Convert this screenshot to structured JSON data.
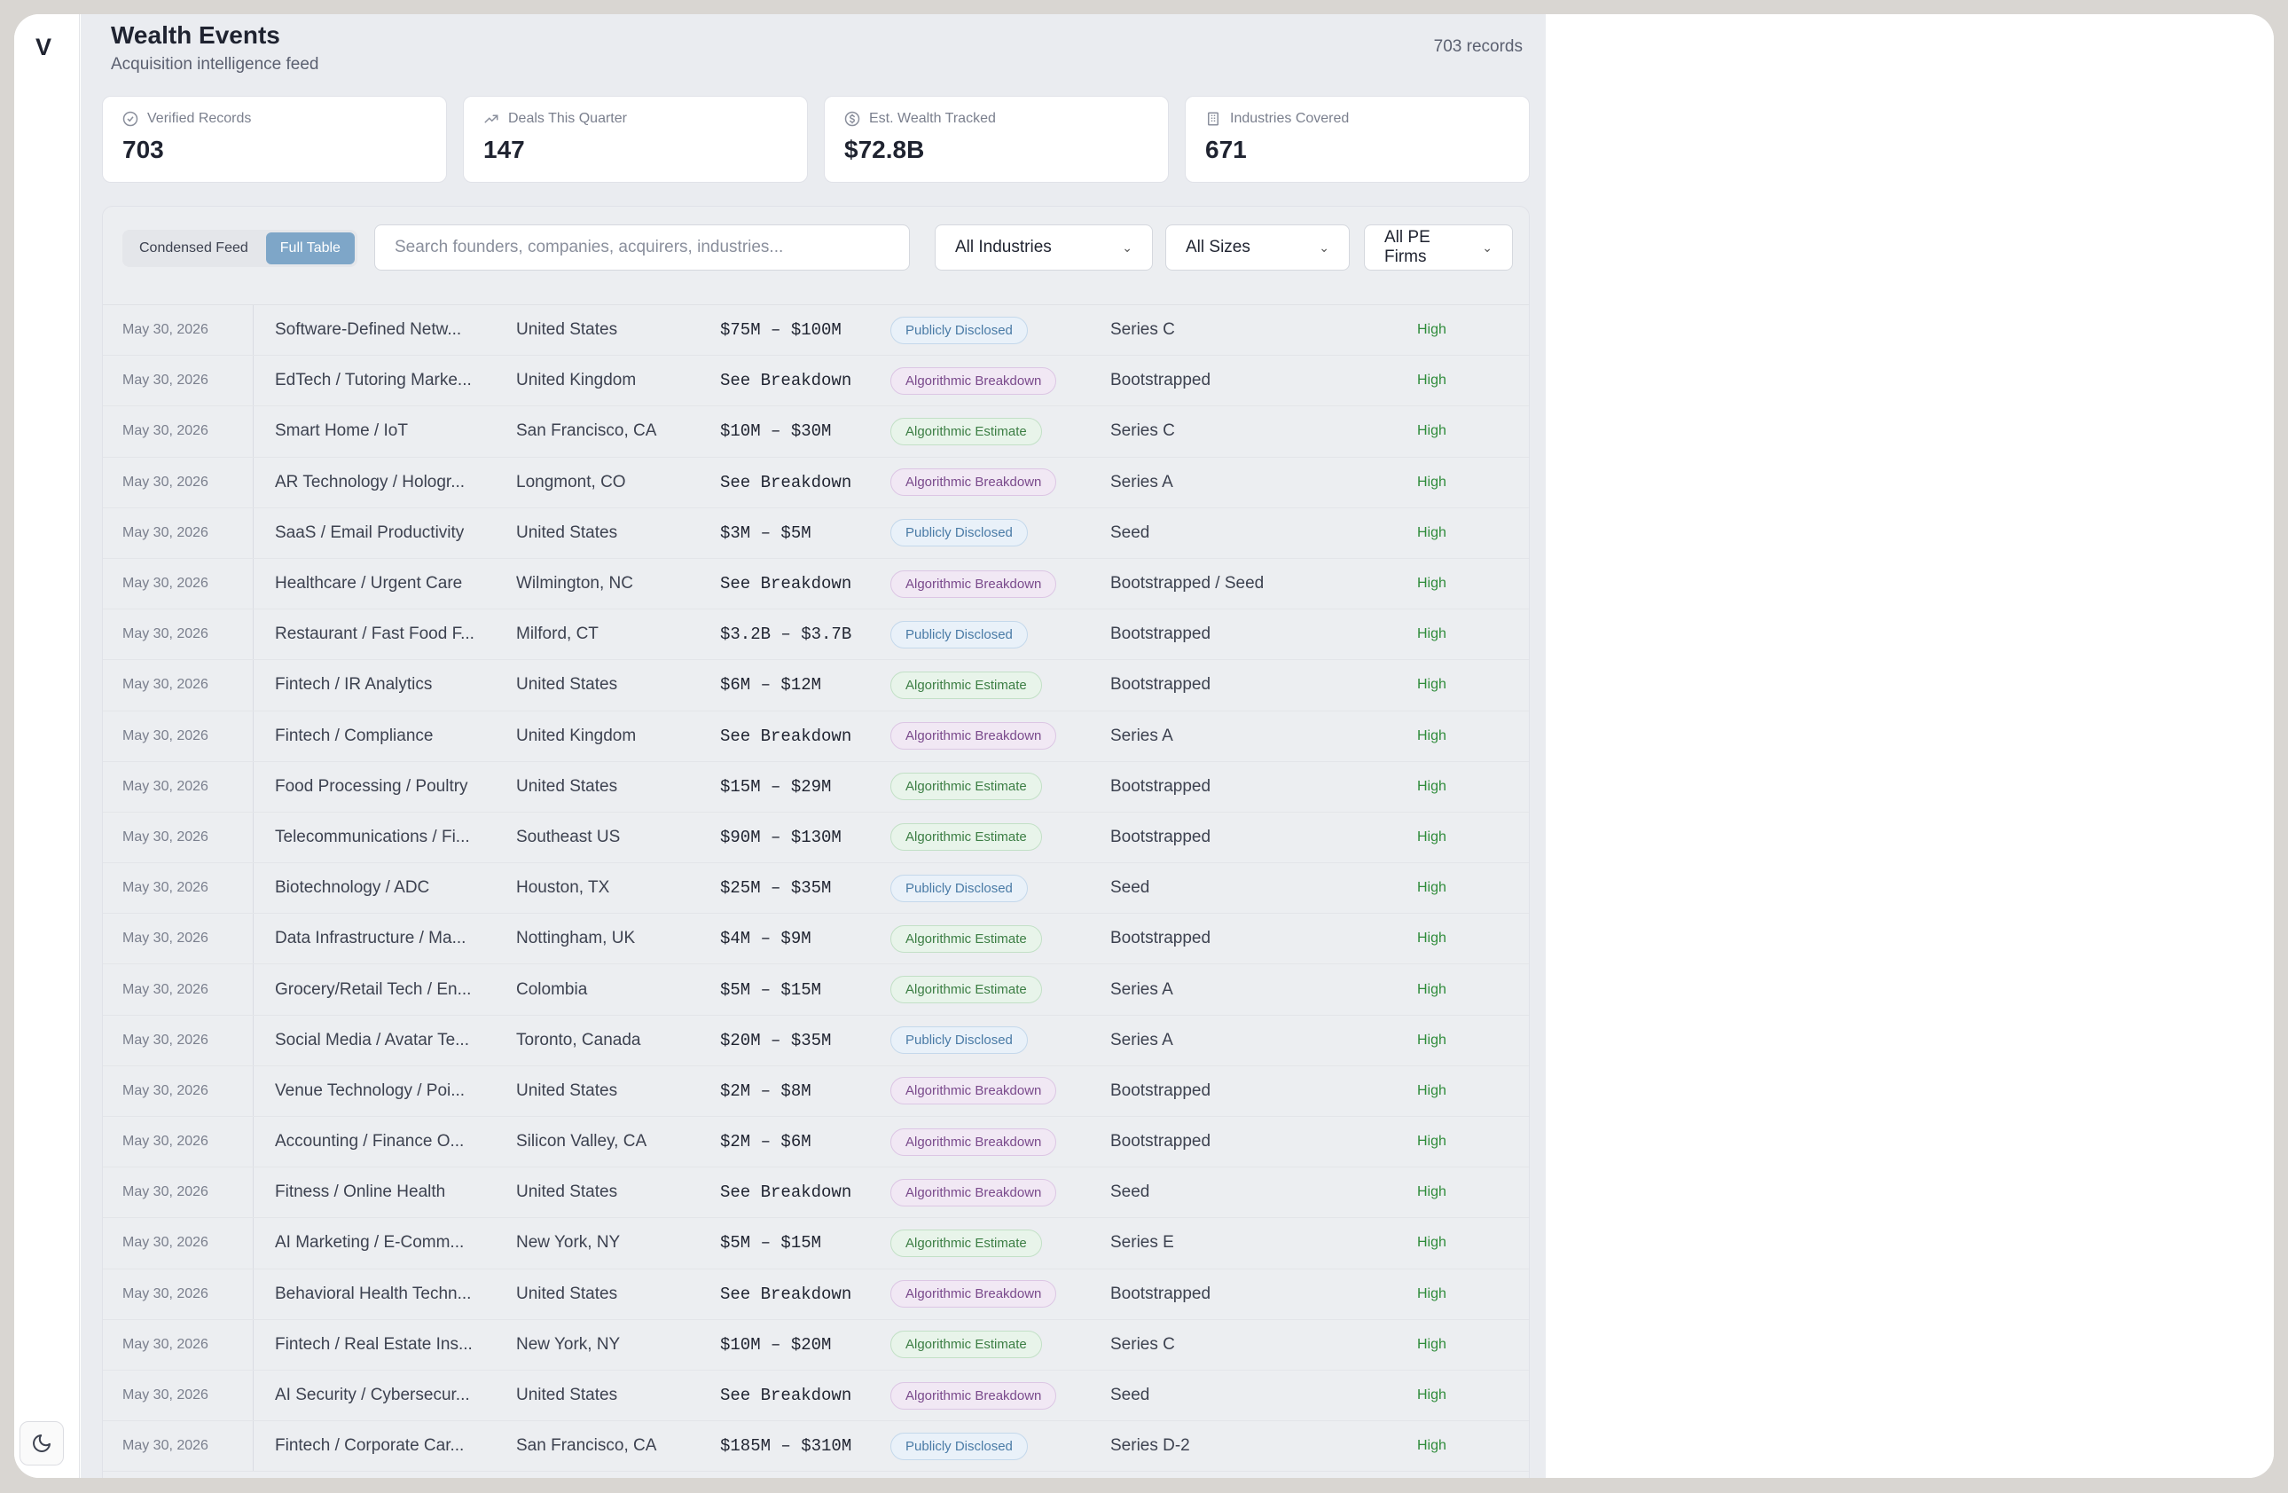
{
  "sidebar": {
    "logo": "V",
    "theme_icon": "moon-icon"
  },
  "header": {
    "title": "Wealth Events",
    "subtitle": "Acquisition intelligence feed",
    "records_count": "703 records"
  },
  "stats": [
    {
      "icon": "check-circle-icon",
      "label": "Verified Records",
      "value": "703"
    },
    {
      "icon": "trending-up-icon",
      "label": "Deals This Quarter",
      "value": "147"
    },
    {
      "icon": "dollar-circle-icon",
      "label": "Est. Wealth Tracked",
      "value": "$72.8B"
    },
    {
      "icon": "building-icon",
      "label": "Industries Covered",
      "value": "671"
    }
  ],
  "toolbar": {
    "view_condensed": "Condensed Feed",
    "view_full": "Full Table",
    "search_placeholder": "Search founders, companies, acquirers, industries...",
    "filter_industries": "All Industries",
    "filter_sizes": "All Sizes",
    "filter_pe": "All PE Firms"
  },
  "colors": {
    "publicly_disclosed": "#4a7ba6",
    "algorithmic_breakdown": "#7a4a8c",
    "algorithmic_estimate": "#3c7e44",
    "confidence_high": "#2e8b3a",
    "active_toggle": "#7ea6c8"
  },
  "rows": [
    {
      "date": "May 30, 2026",
      "industry": "Software-Defined Netw...",
      "location": "United States",
      "value": "$75M – $100M",
      "source": "Publicly Disclosed",
      "source_type": "pub",
      "stage": "Series C",
      "confidence": "High"
    },
    {
      "date": "May 30, 2026",
      "industry": "EdTech / Tutoring Marke...",
      "location": "United Kingdom",
      "value": "See Breakdown",
      "source": "Algorithmic Breakdown",
      "source_type": "brk",
      "stage": "Bootstrapped",
      "confidence": "High"
    },
    {
      "date": "May 30, 2026",
      "industry": "Smart Home / IoT",
      "location": "San Francisco, CA",
      "value": "$10M – $30M",
      "source": "Algorithmic Estimate",
      "source_type": "est",
      "stage": "Series C",
      "confidence": "High"
    },
    {
      "date": "May 30, 2026",
      "industry": "AR Technology / Hologr...",
      "location": "Longmont, CO",
      "value": "See Breakdown",
      "source": "Algorithmic Breakdown",
      "source_type": "brk",
      "stage": "Series A",
      "confidence": "High"
    },
    {
      "date": "May 30, 2026",
      "industry": "SaaS / Email Productivity",
      "location": "United States",
      "value": "$3M – $5M",
      "source": "Publicly Disclosed",
      "source_type": "pub",
      "stage": "Seed",
      "confidence": "High"
    },
    {
      "date": "May 30, 2026",
      "industry": "Healthcare / Urgent Care",
      "location": "Wilmington, NC",
      "value": "See Breakdown",
      "source": "Algorithmic Breakdown",
      "source_type": "brk",
      "stage": "Bootstrapped / Seed",
      "confidence": "High"
    },
    {
      "date": "May 30, 2026",
      "industry": "Restaurant / Fast Food F...",
      "location": "Milford, CT",
      "value": "$3.2B – $3.7B",
      "source": "Publicly Disclosed",
      "source_type": "pub",
      "stage": "Bootstrapped",
      "confidence": "High"
    },
    {
      "date": "May 30, 2026",
      "industry": "Fintech / IR Analytics",
      "location": "United States",
      "value": "$6M – $12M",
      "source": "Algorithmic Estimate",
      "source_type": "est",
      "stage": "Bootstrapped",
      "confidence": "High"
    },
    {
      "date": "May 30, 2026",
      "industry": "Fintech / Compliance",
      "location": "United Kingdom",
      "value": "See Breakdown",
      "source": "Algorithmic Breakdown",
      "source_type": "brk",
      "stage": "Series A",
      "confidence": "High"
    },
    {
      "date": "May 30, 2026",
      "industry": "Food Processing / Poultry",
      "location": "United States",
      "value": "$15M – $29M",
      "source": "Algorithmic Estimate",
      "source_type": "est",
      "stage": "Bootstrapped",
      "confidence": "High"
    },
    {
      "date": "May 30, 2026",
      "industry": "Telecommunications / Fi...",
      "location": "Southeast US",
      "value": "$90M – $130M",
      "source": "Algorithmic Estimate",
      "source_type": "est",
      "stage": "Bootstrapped",
      "confidence": "High"
    },
    {
      "date": "May 30, 2026",
      "industry": "Biotechnology / ADC",
      "location": "Houston, TX",
      "value": "$25M – $35M",
      "source": "Publicly Disclosed",
      "source_type": "pub",
      "stage": "Seed",
      "confidence": "High"
    },
    {
      "date": "May 30, 2026",
      "industry": "Data Infrastructure / Ma...",
      "location": "Nottingham, UK",
      "value": "$4M – $9M",
      "source": "Algorithmic Estimate",
      "source_type": "est",
      "stage": "Bootstrapped",
      "confidence": "High"
    },
    {
      "date": "May 30, 2026",
      "industry": "Grocery/Retail Tech / En...",
      "location": "Colombia",
      "value": "$5M – $15M",
      "source": "Algorithmic Estimate",
      "source_type": "est",
      "stage": "Series A",
      "confidence": "High"
    },
    {
      "date": "May 30, 2026",
      "industry": "Social Media / Avatar Te...",
      "location": "Toronto, Canada",
      "value": "$20M – $35M",
      "source": "Publicly Disclosed",
      "source_type": "pub",
      "stage": "Series A",
      "confidence": "High"
    },
    {
      "date": "May 30, 2026",
      "industry": "Venue Technology / Poi...",
      "location": "United States",
      "value": "$2M – $8M",
      "source": "Algorithmic Breakdown",
      "source_type": "brk",
      "stage": "Bootstrapped",
      "confidence": "High"
    },
    {
      "date": "May 30, 2026",
      "industry": "Accounting / Finance O...",
      "location": "Silicon Valley, CA",
      "value": "$2M – $6M",
      "source": "Algorithmic Breakdown",
      "source_type": "brk",
      "stage": "Bootstrapped",
      "confidence": "High"
    },
    {
      "date": "May 30, 2026",
      "industry": "Fitness / Online Health",
      "location": "United States",
      "value": "See Breakdown",
      "source": "Algorithmic Breakdown",
      "source_type": "brk",
      "stage": "Seed",
      "confidence": "High"
    },
    {
      "date": "May 30, 2026",
      "industry": "AI Marketing / E-Comm...",
      "location": "New York, NY",
      "value": "$5M – $15M",
      "source": "Algorithmic Estimate",
      "source_type": "est",
      "stage": "Series E",
      "confidence": "High"
    },
    {
      "date": "May 30, 2026",
      "industry": "Behavioral Health Techn...",
      "location": "United States",
      "value": "See Breakdown",
      "source": "Algorithmic Breakdown",
      "source_type": "brk",
      "stage": "Bootstrapped",
      "confidence": "High"
    },
    {
      "date": "May 30, 2026",
      "industry": "Fintech / Real Estate Ins...",
      "location": "New York, NY",
      "value": "$10M – $20M",
      "source": "Algorithmic Estimate",
      "source_type": "est",
      "stage": "Series C",
      "confidence": "High"
    },
    {
      "date": "May 30, 2026",
      "industry": "AI Security / Cybersecur...",
      "location": "United States",
      "value": "See Breakdown",
      "source": "Algorithmic Breakdown",
      "source_type": "brk",
      "stage": "Seed",
      "confidence": "High"
    },
    {
      "date": "May 30, 2026",
      "industry": "Fintech / Corporate Car...",
      "location": "San Francisco, CA",
      "value": "$185M – $310M",
      "source": "Publicly Disclosed",
      "source_type": "pub",
      "stage": "Series D-2",
      "confidence": "High"
    }
  ]
}
